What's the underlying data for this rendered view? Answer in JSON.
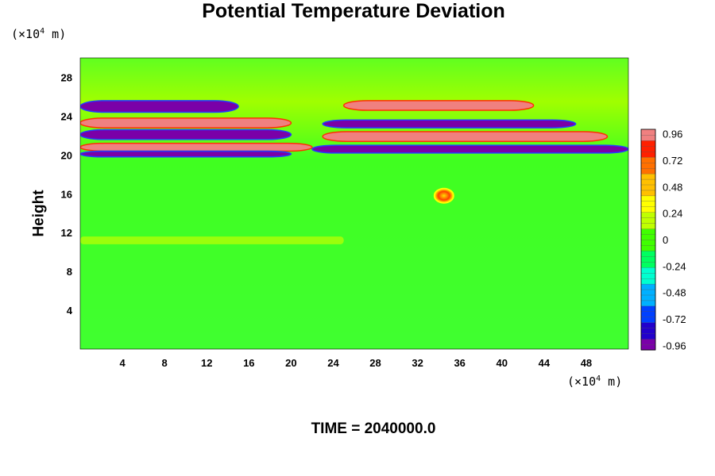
{
  "chart_data": {
    "type": "heatmap",
    "title": "Potential Temperature Deviation",
    "ylabel": "Height",
    "xlabel": "",
    "y_unit": {
      "prefix": "(×10",
      "exp": "4",
      "suffix": " m)"
    },
    "x_unit": {
      "prefix": "(×10",
      "exp": "4",
      "suffix": " m)"
    },
    "x_range": [
      0,
      52
    ],
    "y_range": [
      0,
      30
    ],
    "x_ticks": [
      4,
      8,
      12,
      16,
      20,
      24,
      28,
      32,
      36,
      40,
      44,
      48
    ],
    "y_ticks": [
      4,
      8,
      12,
      16,
      20,
      24,
      28
    ],
    "colorbar": {
      "range": [
        -1.0,
        1.0
      ],
      "tick_labels": [
        "0.96",
        "0.72",
        "0.48",
        "0.24",
        "0",
        "-0.24",
        "-0.48",
        "-0.72",
        "-0.96"
      ],
      "tick_values": [
        0.96,
        0.72,
        0.48,
        0.24,
        0,
        -0.24,
        -0.48,
        -0.72,
        -0.96
      ],
      "colors": [
        "#7a00a8",
        "#2200cc",
        "#0040ff",
        "#00b0ff",
        "#00ffd0",
        "#00ff60",
        "#40ff00",
        "#c0ff00",
        "#ffff00",
        "#ffc000",
        "#ff7000",
        "#ff2000",
        "#f08080"
      ]
    },
    "features": [
      {
        "name": "band",
        "y_range": [
          24.4,
          25.6
        ],
        "x_range": [
          0,
          15
        ],
        "value": -0.96
      },
      {
        "name": "band",
        "y_range": [
          24.6,
          25.6
        ],
        "x_range": [
          25,
          43
        ],
        "value": 0.96
      },
      {
        "name": "band",
        "y_range": [
          22.8,
          23.8
        ],
        "x_range": [
          0,
          20
        ],
        "value": 0.96
      },
      {
        "name": "band",
        "y_range": [
          22.8,
          23.6
        ],
        "x_range": [
          23,
          47
        ],
        "value": -0.96
      },
      {
        "name": "band",
        "y_range": [
          21.6,
          22.6
        ],
        "x_range": [
          0,
          20
        ],
        "value": -0.96
      },
      {
        "name": "band",
        "y_range": [
          21.4,
          22.4
        ],
        "x_range": [
          23,
          50
        ],
        "value": 0.96
      },
      {
        "name": "band",
        "y_range": [
          20.4,
          21.2
        ],
        "x_range": [
          0,
          22
        ],
        "value": 0.96
      },
      {
        "name": "band",
        "y_range": [
          20.2,
          21.0
        ],
        "x_range": [
          22,
          52
        ],
        "value": -0.96
      },
      {
        "name": "band",
        "y_range": [
          19.8,
          20.4
        ],
        "x_range": [
          0,
          20
        ],
        "value": -0.96
      },
      {
        "name": "bubble",
        "x": 34.5,
        "y": 15.8,
        "value": 0.6
      },
      {
        "name": "layer",
        "y_range": [
          10.8,
          11.6
        ],
        "x_range": [
          0,
          25
        ],
        "value": 0.15
      }
    ]
  },
  "footer": {
    "time_label": "TIME = 2040000.0"
  }
}
